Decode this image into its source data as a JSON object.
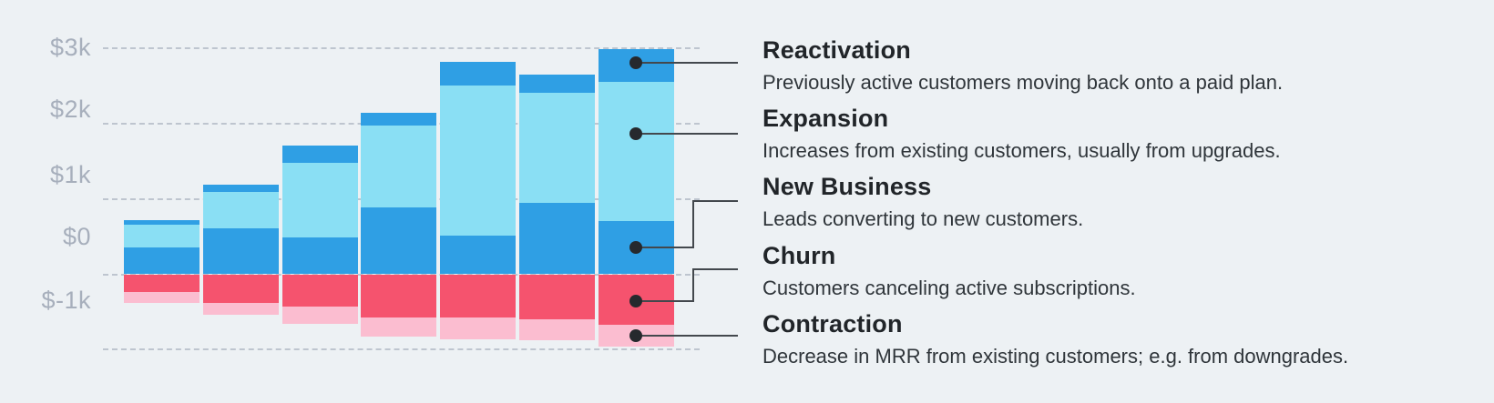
{
  "chart_data": {
    "type": "bar",
    "stacked": true,
    "title": "",
    "xlabel": "",
    "ylabel": "",
    "num_bars": 7,
    "y_ticks": [
      {
        "label": "$3k",
        "value": 3000
      },
      {
        "label": "$2k",
        "value": 2000
      },
      {
        "label": "$1k",
        "value": 1000
      },
      {
        "label": "$0",
        "value": 0
      },
      {
        "label": "$-1k",
        "value": -1000
      }
    ],
    "ylim": [
      -1000,
      3000
    ],
    "grid": "dashed-horizontal",
    "legend_position": "right-callouts",
    "series": [
      {
        "name": "Reactivation",
        "color": "#2f9fe4",
        "values": [
          60,
          100,
          230,
          170,
          315,
          245,
          440
        ]
      },
      {
        "name": "Expansion",
        "color": "#8adff4",
        "values": [
          295,
          480,
          990,
          1095,
          2000,
          1460,
          1845
        ]
      },
      {
        "name": "New Business",
        "color": "#2f9fe4",
        "values": [
          360,
          610,
          495,
          885,
          510,
          950,
          705
        ]
      },
      {
        "name": "Churn",
        "color": "#f5536e",
        "values": [
          -235,
          -375,
          -425,
          -570,
          -580,
          -600,
          -665
        ]
      },
      {
        "name": "Contraction",
        "color": "#fbbdd0",
        "values": [
          -145,
          -165,
          -230,
          -260,
          -290,
          -280,
          -300
        ]
      }
    ]
  },
  "legend": {
    "items": [
      {
        "title": "Reactivation",
        "description": "Previously active customers moving back onto a paid plan."
      },
      {
        "title": "Expansion",
        "description": "Increases from existing customers, usually from upgrades."
      },
      {
        "title": "New Business",
        "description": "Leads converting to new customers."
      },
      {
        "title": "Churn",
        "description": "Customers canceling active subscriptions."
      },
      {
        "title": "Contraction",
        "description": "Decrease in MRR from existing customers; e.g. from downgrades."
      }
    ]
  },
  "colors": {
    "background": "#edf1f4",
    "gridline": "#a5aebc",
    "axis_label": "#a7afbc",
    "legend_title": "#212529",
    "legend_description": "#2f353a",
    "connector_line": "#43484d",
    "connector_dot": "#26292d",
    "bar_blue": "#2f9fe4",
    "bar_cyan": "#8adff4",
    "bar_red": "#f5536e",
    "bar_pink": "#fbbdd0"
  }
}
